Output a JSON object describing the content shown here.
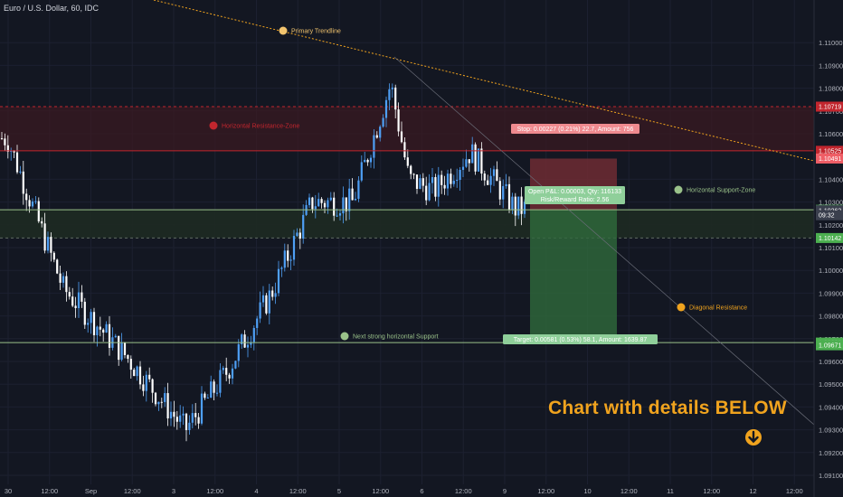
{
  "header": {
    "symbol": "Euro / U.S. Dollar, 60, IDC"
  },
  "promo": {
    "text": "Chart with details BELOW",
    "icon": "arrow-down-circle-icon"
  },
  "colors": {
    "background": "#131722",
    "bull": "#4e9ff5",
    "bear": "#ffffff",
    "resistance": "#c2262e",
    "support": "#9ac28a",
    "orange": "#f0a31e",
    "stop_zone": "#6e2b33",
    "target_zone": "#3b6e45"
  },
  "annotations": {
    "primary_trendline": "Primary Trendline",
    "horizontal_resistance": "Horizontal Resistance-Zone",
    "horizontal_support": "Horizontal Support-Zone",
    "next_support": "Next strong horizontal Support",
    "diagonal_resistance": "Diagonal Resistance"
  },
  "position": {
    "stop_label": "Stop: 0.00227 (0.21%) 22.7, Amount: 756",
    "open_label": "Open P&L: 0.00003, Qty: 116133",
    "rr_label": "Risk/Reward Ratio: 2.56",
    "target_label": "Target: 0.00581 (0.53%) 58.1, Amount: 1639.87",
    "entry_price": 1.10264,
    "stop_price": 1.10491,
    "target_price": 1.09683
  },
  "chart_data": {
    "type": "candlestick",
    "symbol": "EURUSD",
    "timeframe": "60",
    "ylim": [
      1.091,
      1.11
    ],
    "y_ticks": [
      1.091,
      1.092,
      1.093,
      1.094,
      1.095,
      1.096,
      1.097,
      1.098,
      1.099,
      1.1,
      1.101,
      1.102,
      1.103,
      1.104,
      1.106,
      1.107,
      1.108,
      1.109,
      1.11
    ],
    "x_ticks": [
      "30",
      "12:00",
      "Sep",
      "12:00",
      "3",
      "12:00",
      "4",
      "12:00",
      "5",
      "12:00",
      "6",
      "12:00",
      "9",
      "12:00",
      "10",
      "12:00",
      "11",
      "12:00",
      "12",
      "12:00"
    ],
    "price_labels": [
      {
        "value": 1.10719,
        "text": "1.10719",
        "style": "resistance"
      },
      {
        "value": 1.10525,
        "text": "1.10525",
        "style": "resistance"
      },
      {
        "value": 1.10491,
        "text": "1.10491",
        "style": "stop"
      },
      {
        "value": 1.10266,
        "text": "1.10266",
        "style": "support"
      },
      {
        "value": 1.10264,
        "text": "1.10264",
        "style": "current"
      },
      {
        "value": 1.10262,
        "text": "1.10262",
        "style": "gray"
      },
      {
        "value": 1.10242,
        "text": "09:32",
        "style": "gray"
      },
      {
        "value": 1.10142,
        "text": "1.10142",
        "style": "support"
      },
      {
        "value": 1.09683,
        "text": "1.09683",
        "style": "support"
      },
      {
        "value": 1.09671,
        "text": "1.09671",
        "style": "support"
      }
    ],
    "levels": {
      "resistance_zone": [
        1.10525,
        1.10719
      ],
      "resistance_line": 1.10525,
      "support_zone": [
        1.10142,
        1.10266
      ],
      "support_line": 1.10266,
      "next_support": 1.09683
    },
    "candle_path": [
      {
        "day": "Aug 30 12:00",
        "price": 1.1058
      },
      {
        "day": "Sep 2 00:00",
        "price": 1.0992
      },
      {
        "day": "Sep 2 12:00",
        "price": 1.0962
      },
      {
        "day": "Sep 3 00:00",
        "price": 1.093
      },
      {
        "day": "Sep 3 12:00",
        "price": 1.0955
      },
      {
        "day": "Sep 4 00:00",
        "price": 1.099
      },
      {
        "day": "Sep 4 12:00",
        "price": 1.103
      },
      {
        "day": "Sep 5 00:00",
        "price": 1.103
      },
      {
        "day": "Sep 5 09:00",
        "price": 1.1082
      },
      {
        "day": "Sep 5 12:00",
        "price": 1.104
      },
      {
        "day": "Sep 6 00:00",
        "price": 1.1035
      },
      {
        "day": "Sep 6 12:00",
        "price": 1.1052
      },
      {
        "day": "Sep 9 00:00",
        "price": 1.1027
      }
    ]
  }
}
